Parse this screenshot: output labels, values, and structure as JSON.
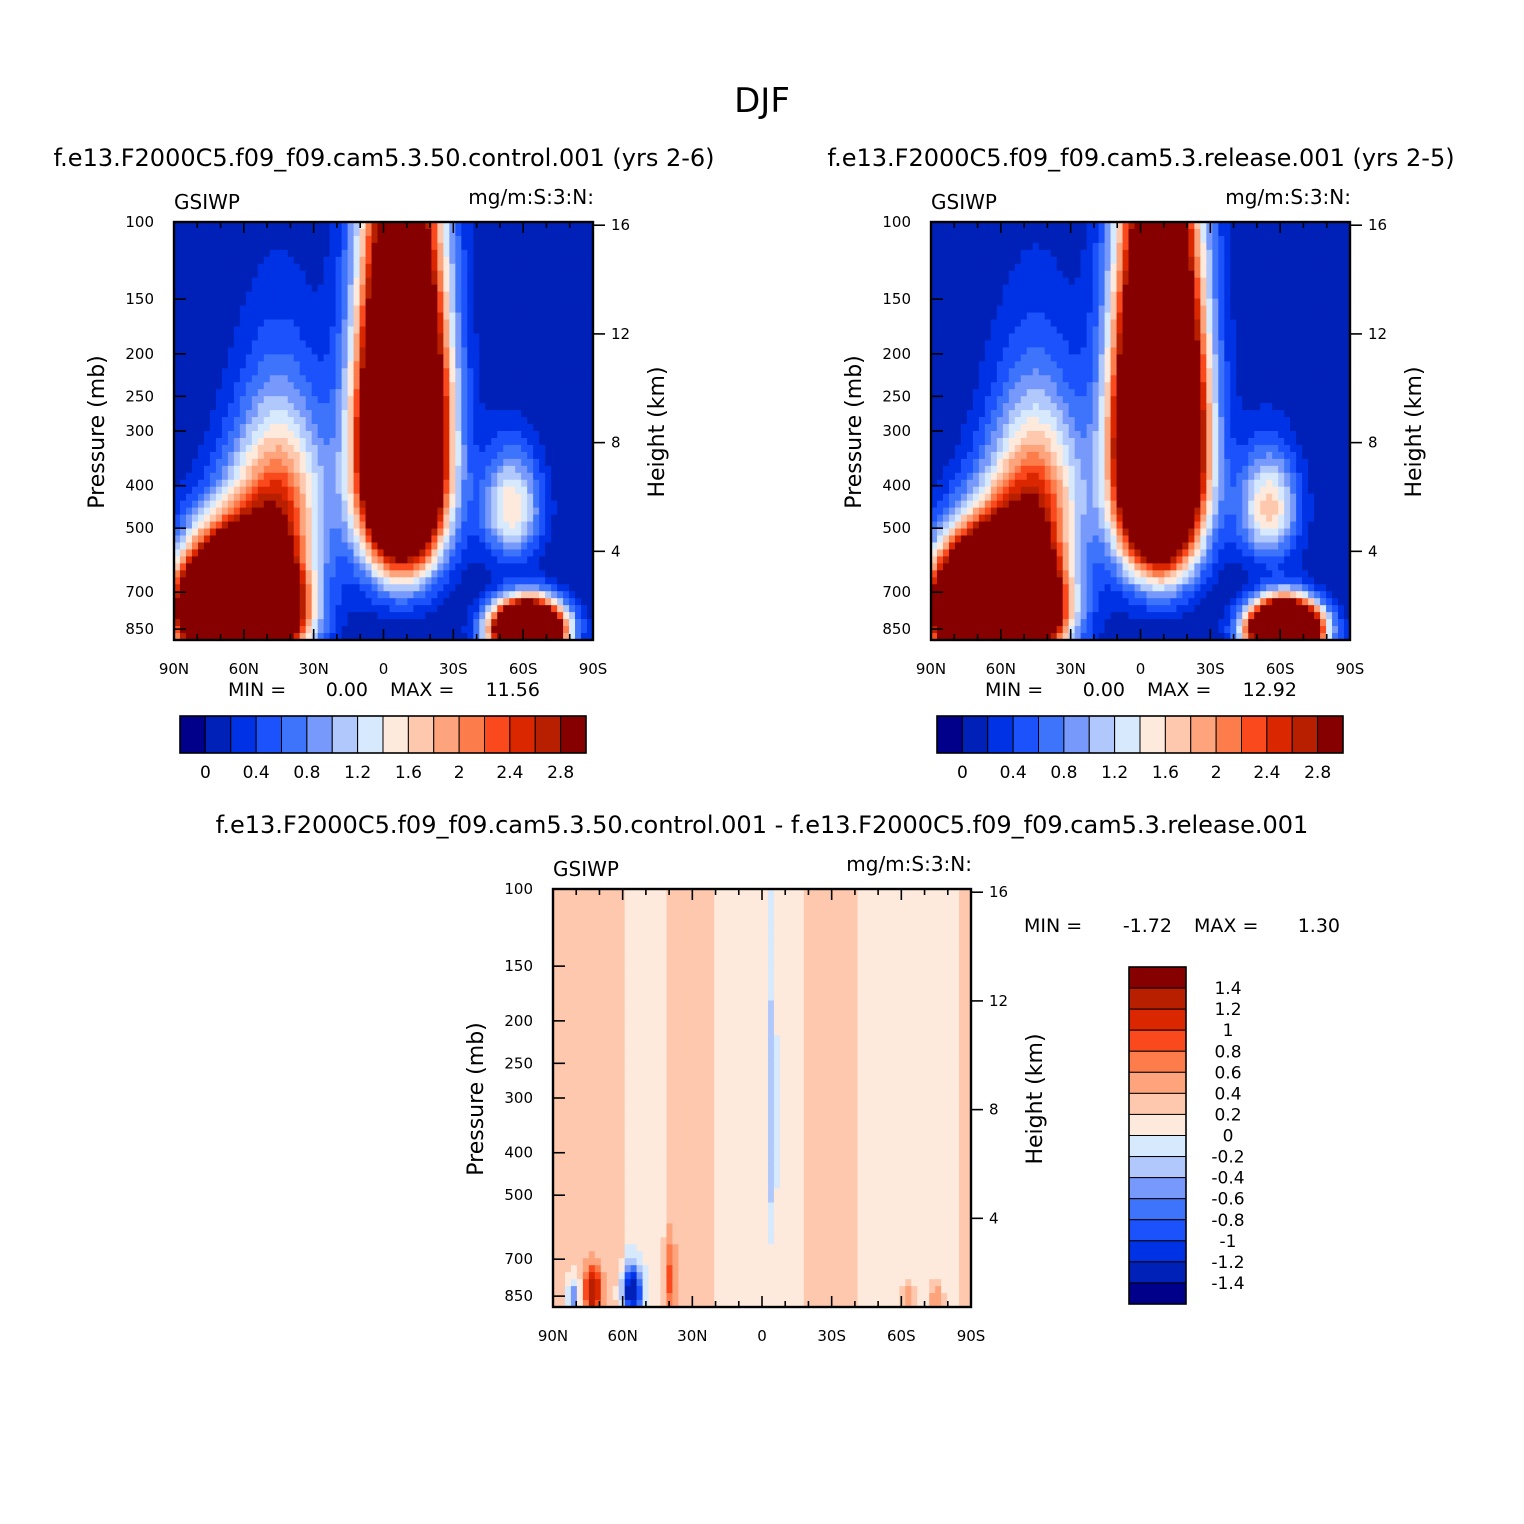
{
  "figure": {
    "title": "DJF"
  },
  "chart_data": [
    {
      "type": "heatmap",
      "title": "f.e13.F2000C5.f09_f09.cam5.3.50.control.001  (yrs 2-6)",
      "left_label": "GSIWP",
      "right_label": "mg/m:S:3:N:",
      "ylabel": "Pressure  (mb)",
      "ylabel2": "Height  (km)",
      "xticks": [
        "90N",
        "60N",
        "30N",
        "0",
        "30S",
        "60S",
        "90S"
      ],
      "xlim": [
        90,
        -90
      ],
      "yticks": [
        100,
        150,
        200,
        250,
        300,
        400,
        500,
        700,
        850
      ],
      "ylim": [
        100,
        900
      ],
      "yticks2": [
        16,
        12,
        8,
        4
      ],
      "stats": {
        "min_label": "MIN =",
        "min": "0.00",
        "max_label": "MAX =",
        "max": "11.56"
      },
      "colorbar_labels": [
        "0",
        "0.4",
        "0.8",
        "1.2",
        "1.6",
        "2",
        "2.4",
        "2.8"
      ],
      "levels": [
        0,
        0.2,
        0.4,
        0.6,
        0.8,
        1.0,
        1.2,
        1.4,
        1.6,
        1.8,
        2.0,
        2.2,
        2.4,
        2.6,
        2.8
      ],
      "features": [
        {
          "lat": 62,
          "p": 760,
          "peak": 11.56,
          "lat_width": 16,
          "p_width": 150
        },
        {
          "lat": 45,
          "p": 420,
          "peak": 2.1,
          "lat_width": 14,
          "p_width": 140
        },
        {
          "lat": -8,
          "p": 320,
          "peak": 9.0,
          "lat_width": 12,
          "p_width": 180
        },
        {
          "lat": -55,
          "p": 450,
          "peak": 1.6,
          "lat_width": 9,
          "p_width": 90
        },
        {
          "lat": -62,
          "p": 850,
          "peak": 8.0,
          "lat_width": 10,
          "p_width": 80
        }
      ]
    },
    {
      "type": "heatmap",
      "title": "f.e13.F2000C5.f09_f09.cam5.3.release.001  (yrs 2-5)",
      "left_label": "GSIWP",
      "right_label": "mg/m:S:3:N:",
      "ylabel": "Pressure  (mb)",
      "ylabel2": "Height  (km)",
      "xticks": [
        "90N",
        "60N",
        "30N",
        "0",
        "30S",
        "60S",
        "90S"
      ],
      "xlim": [
        90,
        -90
      ],
      "yticks": [
        100,
        150,
        200,
        250,
        300,
        400,
        500,
        700,
        850
      ],
      "ylim": [
        100,
        900
      ],
      "yticks2": [
        16,
        12,
        8,
        4
      ],
      "stats": {
        "min_label": "MIN =",
        "min": "0.00",
        "max_label": "MAX =",
        "max": "12.92"
      },
      "colorbar_labels": [
        "0",
        "0.4",
        "0.8",
        "1.2",
        "1.6",
        "2",
        "2.4",
        "2.8"
      ],
      "levels": [
        0,
        0.2,
        0.4,
        0.6,
        0.8,
        1.0,
        1.2,
        1.4,
        1.6,
        1.8,
        2.0,
        2.2,
        2.4,
        2.6,
        2.8
      ],
      "features": [
        {
          "lat": 62,
          "p": 760,
          "peak": 12.92,
          "lat_width": 16,
          "p_width": 150
        },
        {
          "lat": 45,
          "p": 420,
          "peak": 2.2,
          "lat_width": 14,
          "p_width": 140
        },
        {
          "lat": -8,
          "p": 320,
          "peak": 9.5,
          "lat_width": 12,
          "p_width": 180
        },
        {
          "lat": -55,
          "p": 450,
          "peak": 1.7,
          "lat_width": 9,
          "p_width": 90
        },
        {
          "lat": -62,
          "p": 850,
          "peak": 8.5,
          "lat_width": 10,
          "p_width": 80
        }
      ]
    },
    {
      "type": "heatmap",
      "title": "f.e13.F2000C5.f09_f09.cam5.3.50.control.001 - f.e13.F2000C5.f09_f09.cam5.3.release.001",
      "left_label": "GSIWP",
      "right_label": "mg/m:S:3:N:",
      "ylabel": "Pressure  (mb)",
      "ylabel2": "Height  (km)",
      "xticks": [
        "90N",
        "60N",
        "30N",
        "0",
        "30S",
        "60S",
        "90S"
      ],
      "xlim": [
        90,
        -90
      ],
      "yticks": [
        100,
        150,
        200,
        250,
        300,
        400,
        500,
        700,
        850
      ],
      "ylim": [
        100,
        900
      ],
      "yticks2": [
        16,
        12,
        8,
        4
      ],
      "stats": {
        "min_label": "MIN =",
        "min": "-1.72",
        "max_label": "MAX =",
        "max": "1.30"
      },
      "colorbar_labels": [
        "1.4",
        "1.2",
        "1",
        "0.8",
        "0.6",
        "0.4",
        "0.2",
        "0",
        "-0.2",
        "-0.4",
        "-0.6",
        "-0.8",
        "-1",
        "-1.2",
        "-1.4"
      ],
      "levels": [
        -1.4,
        -1.2,
        -1.0,
        -0.8,
        -0.6,
        -0.4,
        -0.2,
        0,
        0.2,
        0.4,
        0.6,
        0.8,
        1.0,
        1.2,
        1.4
      ],
      "bands": [
        {
          "lat_from": 90,
          "lat_to": 60,
          "sign": 1
        },
        {
          "lat_from": 60,
          "lat_to": 40,
          "sign": -1
        },
        {
          "lat_from": 40,
          "lat_to": 20,
          "sign": 1
        },
        {
          "lat_from": 20,
          "lat_to": -5,
          "sign": -1
        },
        {
          "lat_from": -5,
          "lat_to": -18,
          "sign": -1
        },
        {
          "lat_from": -18,
          "lat_to": -40,
          "sign": 1
        },
        {
          "lat_from": -40,
          "lat_to": -85,
          "sign": -1
        },
        {
          "lat_from": -85,
          "lat_to": -90,
          "sign": 1
        }
      ],
      "features": [
        {
          "lat": 73,
          "p": 830,
          "peak": 1.3,
          "lat_width": 2.5,
          "p_width": 70
        },
        {
          "lat": 81,
          "p": 860,
          "peak": -0.9,
          "lat_width": 2,
          "p_width": 60
        },
        {
          "lat": 56,
          "p": 830,
          "peak": -1.72,
          "lat_width": 3,
          "p_width": 75
        },
        {
          "lat": 40,
          "p": 780,
          "peak": 0.55,
          "lat_width": 2,
          "p_width": 110
        },
        {
          "lat": -4,
          "p": 350,
          "peak": -0.5,
          "lat_width": 1.5,
          "p_width": 170
        },
        {
          "lat": -75,
          "p": 860,
          "peak": 0.5,
          "lat_width": 2,
          "p_width": 50
        },
        {
          "lat": -63,
          "p": 850,
          "peak": 0.4,
          "lat_width": 1.8,
          "p_width": 50
        }
      ]
    }
  ]
}
